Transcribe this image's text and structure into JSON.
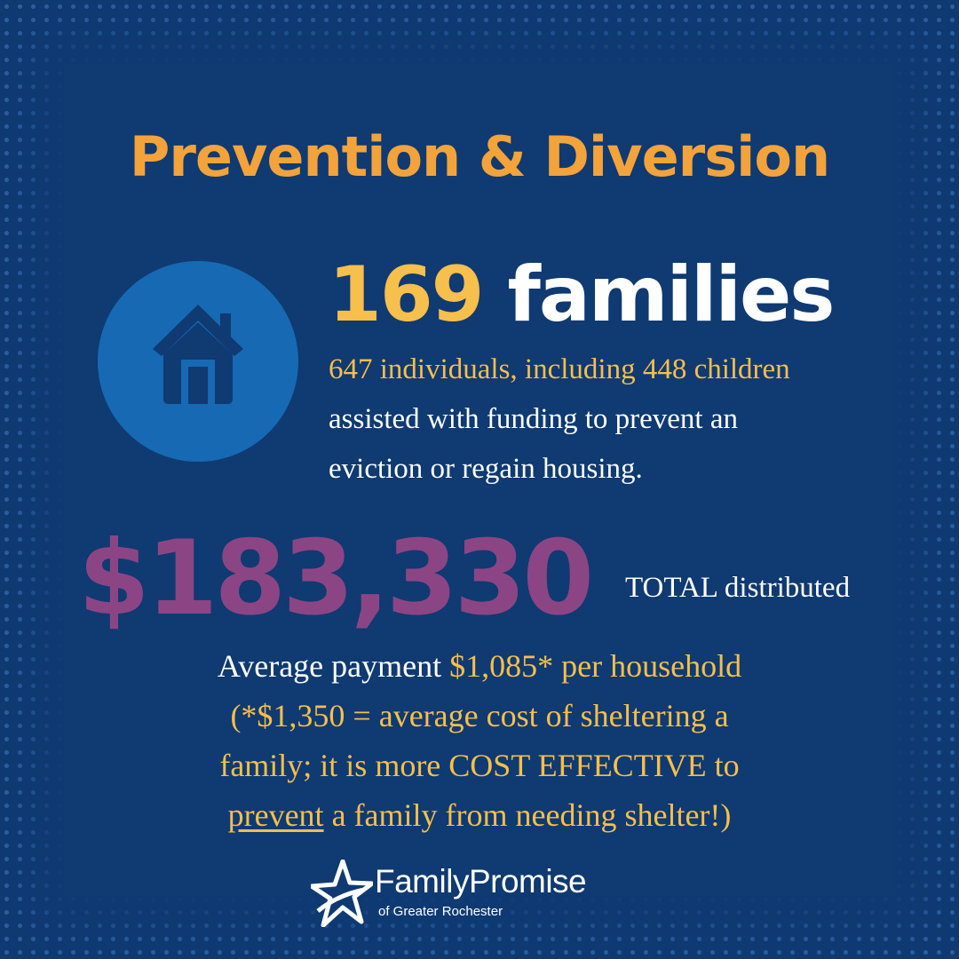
{
  "title": "Prevention & Diversion",
  "icon": "house-icon",
  "stats": {
    "families_number": "169",
    "families_label": "families",
    "individuals_line": "647 individuals, including 448 children",
    "assist_line_1": "assisted with funding to prevent an",
    "assist_line_2": "eviction or regain housing."
  },
  "total": {
    "amount": "$183,330",
    "label": "TOTAL distributed"
  },
  "average": {
    "prefix": "Average payment ",
    "amount": "$1,085* per household",
    "line2": "(*$1,350  = average cost of sheltering a",
    "line3": "family;  it is more COST EFFECTIVE to",
    "line4_underlined": "prevent",
    "line4_rest": " a family from needing shelter!)"
  },
  "logo": {
    "name": "FamilyPromise",
    "subtitle": "of Greater Rochester",
    "icon": "star-icon"
  },
  "colors": {
    "background": "#0f3a72",
    "title_orange": "#f3a33a",
    "highlight_yellow": "#f7bf4b",
    "money_purple": "#8c4584",
    "circle_blue": "#1769b3"
  }
}
